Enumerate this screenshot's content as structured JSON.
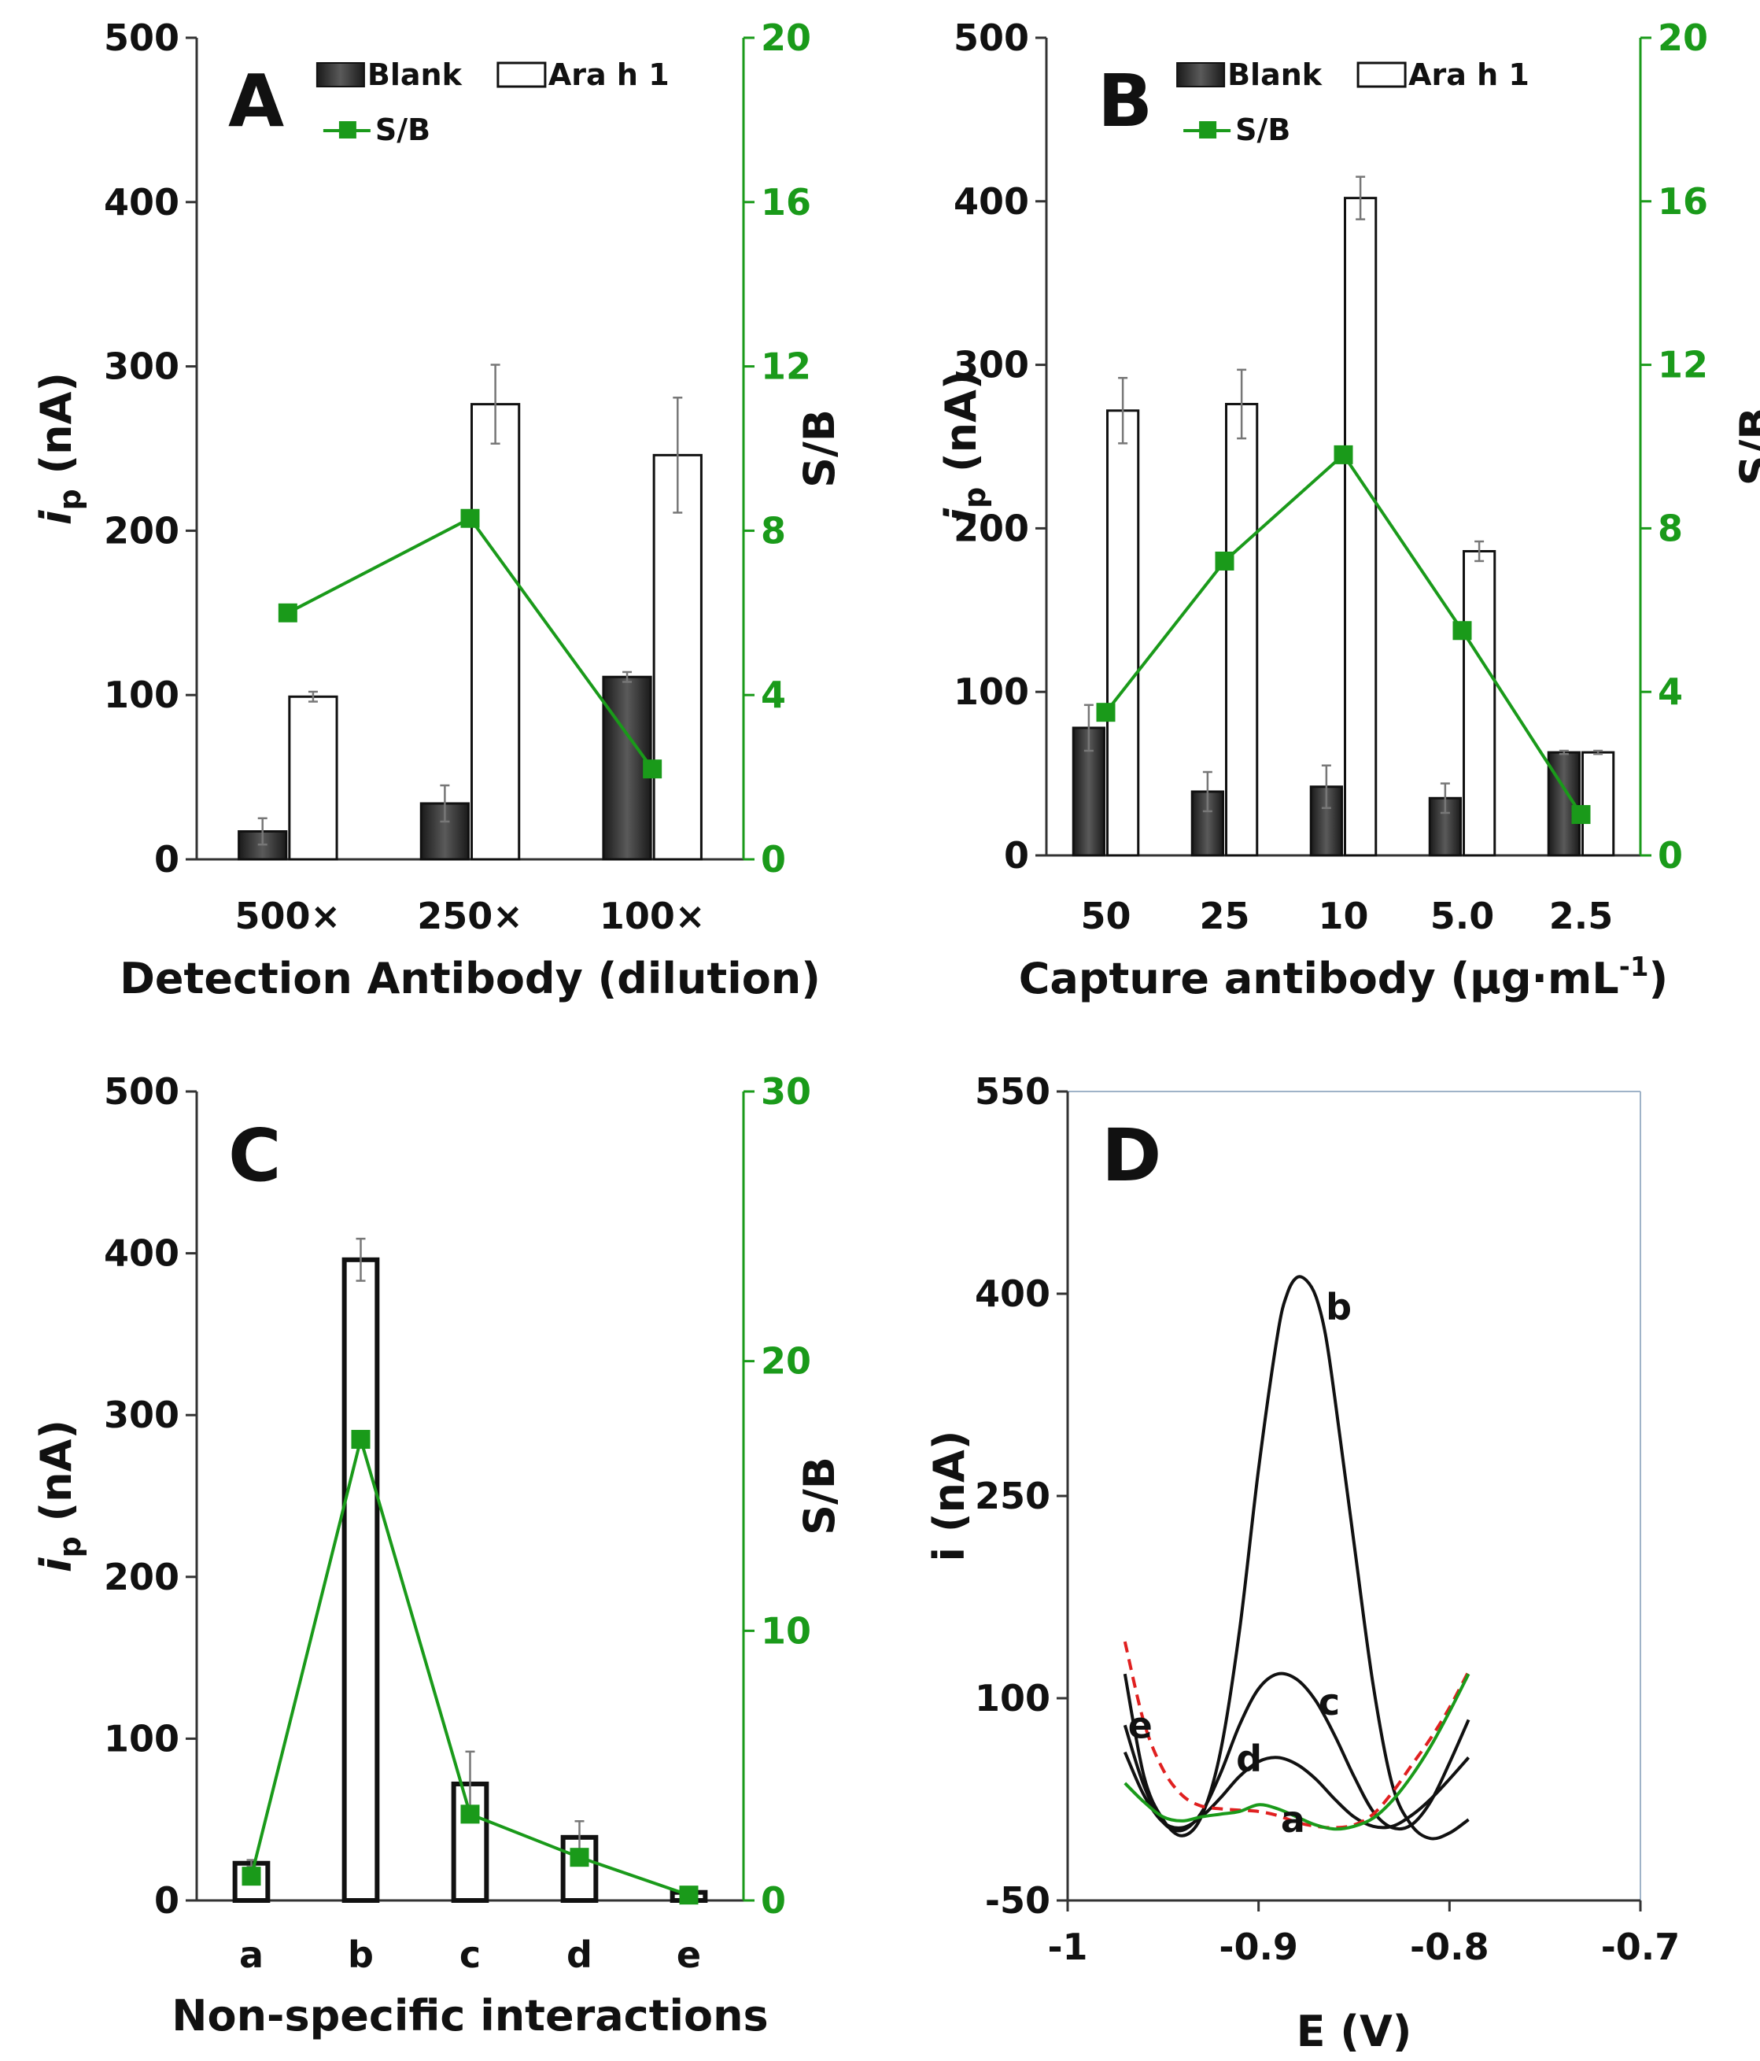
{
  "chart_data": [
    {
      "panel": "A",
      "type": "bar",
      "categories": [
        "500×",
        "250×",
        "100×"
      ],
      "xlabel": "Detection Antibody (dilution)",
      "ylabel": "i",
      "ylabel_sub": "p",
      "ylabel_unit": " (nA)",
      "ylim": [
        0,
        500
      ],
      "yticks": [
        "0",
        "100",
        "200",
        "300",
        "400",
        "500"
      ],
      "y2label": "S/B",
      "y2lim": [
        0,
        20
      ],
      "y2ticks": [
        "0",
        "4",
        "8",
        "12",
        "16",
        "20"
      ],
      "series": [
        {
          "name": "Blank",
          "values": [
            17,
            34,
            111
          ],
          "errors": [
            8,
            11,
            3
          ]
        },
        {
          "name": "Ara h 1",
          "values": [
            99,
            277,
            246
          ],
          "errors": [
            3,
            24,
            35
          ]
        }
      ],
      "line_series": {
        "name": "S/B",
        "values": [
          6.0,
          8.3,
          2.2
        ]
      },
      "legend": "top"
    },
    {
      "panel": "B",
      "type": "bar",
      "categories": [
        "50",
        "25",
        "10",
        "5.0",
        "2.5"
      ],
      "xlabel": "Capture antibody (µg·mL",
      "xlabel_sup": "-1",
      "xlabel_end": ")",
      "ylabel": "i",
      "ylabel_sub": "p",
      "ylabel_unit": " (nA)",
      "ylim": [
        0,
        500
      ],
      "yticks": [
        "0",
        "100",
        "200",
        "300",
        "400",
        "500"
      ],
      "y2label": "S/B",
      "y2lim": [
        0,
        20
      ],
      "y2ticks": [
        "0",
        "4",
        "8",
        "12",
        "16",
        "20"
      ],
      "series": [
        {
          "name": "Blank",
          "values": [
            78,
            39,
            42,
            35,
            63
          ],
          "errors": [
            14,
            12,
            13,
            9,
            1
          ]
        },
        {
          "name": "Ara h 1",
          "values": [
            272,
            276,
            402,
            186,
            63
          ],
          "errors": [
            20,
            21,
            13,
            6,
            1
          ]
        }
      ],
      "line_series": {
        "name": "S/B",
        "values": [
          3.5,
          7.2,
          9.8,
          5.5,
          1.0
        ]
      },
      "legend": "top"
    },
    {
      "panel": "C",
      "type": "bar",
      "categories": [
        "a",
        "b",
        "c",
        "d",
        "e"
      ],
      "xlabel": "Non-specific interactions",
      "ylabel": "i",
      "ylabel_sub": "p",
      "ylabel_unit": " (nA)",
      "ylim": [
        0,
        500
      ],
      "yticks": [
        "0",
        "100",
        "200",
        "300",
        "400",
        "500"
      ],
      "y2label": "S/B",
      "y2lim": [
        0,
        30
      ],
      "y2ticks": [
        "0",
        "10",
        "20",
        "30"
      ],
      "series": [
        {
          "name": "",
          "values": [
            23,
            396,
            72,
            39,
            5
          ],
          "errors": [
            2,
            13,
            20,
            10,
            1
          ]
        }
      ],
      "line_series": {
        "name": "",
        "values": [
          0.9,
          17.1,
          3.2,
          1.6,
          0.2
        ]
      }
    },
    {
      "panel": "D",
      "type": "line",
      "xlabel": "E (V)",
      "ylabel": "i (nA)",
      "xlim": [
        -1,
        -0.7
      ],
      "xticks": [
        "-1",
        "-0.9",
        "-0.8",
        "-0.7"
      ],
      "ylim": [
        -50,
        550
      ],
      "yticks": [
        "-50",
        "100",
        "250",
        "400",
        "550"
      ],
      "series": [
        {
          "name": "a",
          "color": "#1a9a1a",
          "dash": false,
          "x": [
            -0.97,
            -0.96,
            -0.95,
            -0.94,
            -0.93,
            -0.92,
            -0.91,
            -0.9,
            -0.89,
            -0.88,
            -0.87,
            -0.86,
            -0.85,
            -0.84,
            -0.83,
            -0.82,
            -0.81,
            -0.8,
            -0.79
          ],
          "y": [
            37,
            23,
            12,
            9,
            12,
            14,
            16,
            21,
            18,
            12,
            6,
            3,
            5,
            11,
            24,
            42,
            64,
            90,
            118
          ]
        },
        {
          "name": "b",
          "color": "#111111",
          "dash": false,
          "x": [
            -0.97,
            -0.96,
            -0.95,
            -0.94,
            -0.93,
            -0.92,
            -0.91,
            -0.9,
            -0.89,
            -0.885,
            -0.88,
            -0.875,
            -0.87,
            -0.865,
            -0.86,
            -0.85,
            -0.84,
            -0.83,
            -0.82,
            -0.81,
            -0.8,
            -0.79
          ],
          "y": [
            118,
            42,
            10,
            -2,
            12,
            60,
            150,
            270,
            370,
            400,
            412,
            410,
            398,
            370,
            322,
            215,
            110,
            36,
            6,
            -4,
            0,
            10
          ]
        },
        {
          "name": "c",
          "color": "#111111",
          "dash": false,
          "x": [
            -0.97,
            -0.96,
            -0.95,
            -0.94,
            -0.93,
            -0.92,
            -0.91,
            -0.9,
            -0.89,
            -0.88,
            -0.87,
            -0.86,
            -0.85,
            -0.84,
            -0.83,
            -0.82,
            -0.81,
            -0.8,
            -0.79
          ],
          "y": [
            80,
            35,
            8,
            2,
            15,
            44,
            80,
            107,
            118,
            114,
            98,
            72,
            42,
            16,
            4,
            6,
            23,
            52,
            84
          ]
        },
        {
          "name": "d",
          "color": "#111111",
          "dash": false,
          "x": [
            -0.97,
            -0.96,
            -0.95,
            -0.94,
            -0.93,
            -0.92,
            -0.91,
            -0.9,
            -0.89,
            -0.88,
            -0.87,
            -0.86,
            -0.85,
            -0.84,
            -0.83,
            -0.82,
            -0.81,
            -0.8,
            -0.79
          ],
          "y": [
            60,
            28,
            8,
            4,
            12,
            26,
            42,
            53,
            56,
            51,
            40,
            25,
            12,
            5,
            5,
            13,
            25,
            40,
            56
          ]
        },
        {
          "name": "e",
          "color": "#e02020",
          "dash": true,
          "x": [
            -0.97,
            -0.96,
            -0.95,
            -0.94,
            -0.93,
            -0.92,
            -0.91,
            -0.9,
            -0.89,
            -0.88,
            -0.87,
            -0.86,
            -0.85,
            -0.84,
            -0.83,
            -0.82,
            -0.81,
            -0.8,
            -0.79
          ],
          "y": [
            142,
            82,
            47,
            28,
            20,
            18,
            17,
            16,
            13,
            8,
            5,
            4,
            6,
            14,
            30,
            50,
            70,
            93,
            120
          ]
        }
      ]
    }
  ]
}
